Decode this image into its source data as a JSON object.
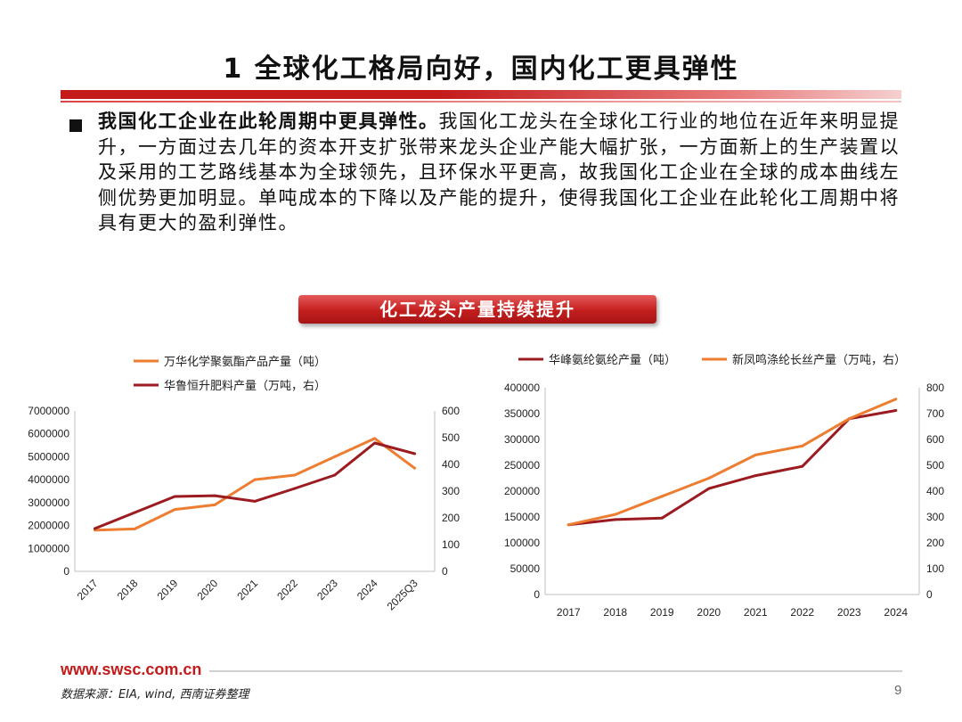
{
  "title": "1 全球化工格局向好，国内化工更具弹性",
  "bullet": {
    "lead": "我国化工企业在此轮周期中更具弹性。",
    "text": "我国化工龙头在全球化工行业的地位在近年来明显提升，一方面过去几年的资本开支扩张带来龙头企业产能大幅扩张，一方面新上的生产装置以及采用的工艺路线基本为全球领先，且环保水平更高，故我国化工企业在全球的成本曲线左侧优势更加明显。单吨成本的下降以及产能的提升，使得我国化工企业在此轮化工周期中将具有更大的盈利弹性。"
  },
  "banner": "化工龙头产量持续提升",
  "colors": {
    "orange": "#ed7d31",
    "darkred": "#9b1b20"
  },
  "chart_data": [
    {
      "type": "line",
      "categories": [
        "2017",
        "2018",
        "2019",
        "2020",
        "2021",
        "2022",
        "2023",
        "2024",
        "2025Q3"
      ],
      "y_left": {
        "ylim": [
          0,
          7000000
        ],
        "ticks": [
          "0",
          "1000000",
          "2000000",
          "3000000",
          "4000000",
          "5000000",
          "6000000",
          "7000000"
        ]
      },
      "y_right": {
        "ylim": [
          0,
          600
        ],
        "ticks": [
          "0",
          "100",
          "200",
          "300",
          "400",
          "500",
          "600"
        ]
      },
      "series": [
        {
          "name": "万华化学聚氨酯产品产量（吨）",
          "axis": "left",
          "color": "#ed7d31",
          "values": [
            1800000,
            1850000,
            2700000,
            2900000,
            4000000,
            4200000,
            5000000,
            5800000,
            4500000
          ]
        },
        {
          "name": "华鲁恒升肥料产量（万吨，右）",
          "axis": "right",
          "color": "#9b1b20",
          "values": [
            160,
            220,
            280,
            283,
            262,
            310,
            360,
            480,
            440
          ]
        }
      ],
      "legend_position": "top"
    },
    {
      "type": "line",
      "categories": [
        "2017",
        "2018",
        "2019",
        "2020",
        "2021",
        "2022",
        "2023",
        "2024"
      ],
      "y_left": {
        "ylim": [
          0,
          400000
        ],
        "ticks": [
          "0",
          "50000",
          "100000",
          "150000",
          "200000",
          "250000",
          "300000",
          "350000",
          "400000"
        ]
      },
      "y_right": {
        "ylim": [
          0,
          800
        ],
        "ticks": [
          "0",
          "100",
          "200",
          "300",
          "400",
          "500",
          "600",
          "700",
          "800"
        ]
      },
      "series": [
        {
          "name": "华峰氨纶氨纶产量（吨）",
          "axis": "left",
          "color": "#9b1b20",
          "values": [
            135000,
            145000,
            148000,
            205000,
            230000,
            248000,
            340000,
            356000
          ]
        },
        {
          "name": "新凤鸣涤纶长丝产量（万吨，右）",
          "axis": "right",
          "color": "#ed7d31",
          "values": [
            270,
            310,
            380,
            450,
            540,
            575,
            680,
            756
          ]
        }
      ],
      "legend_position": "top"
    }
  ],
  "footer": {
    "url": "www.swsc.com.cn",
    "source": "数据来源：EIA, wind, 西南证券整理",
    "page": "9"
  }
}
